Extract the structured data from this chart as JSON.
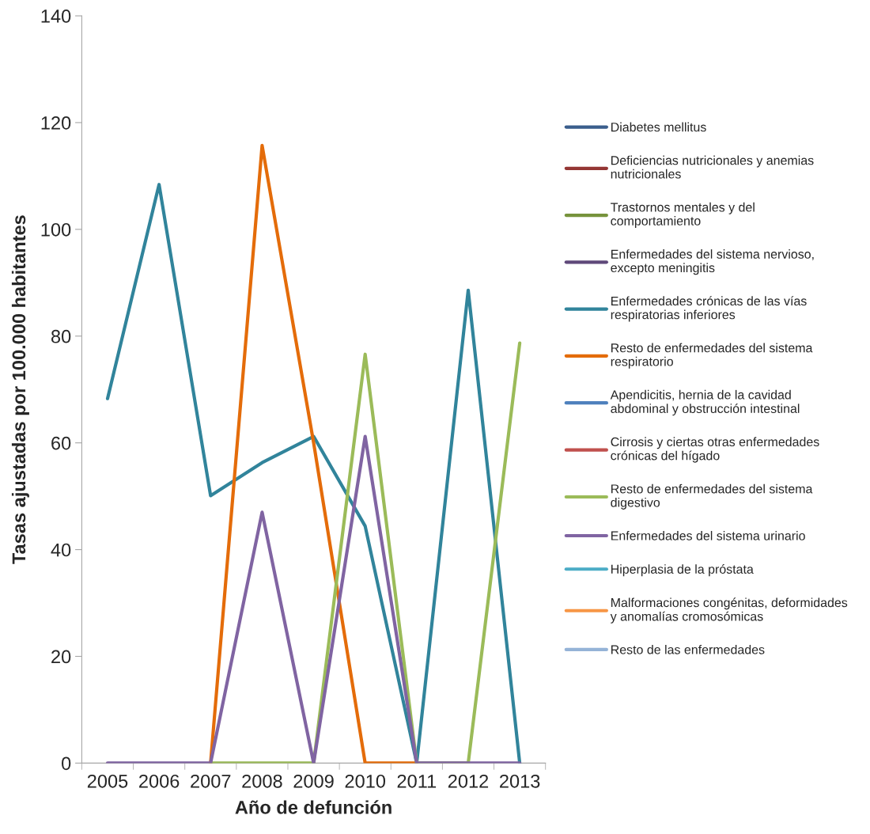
{
  "chart_data": {
    "type": "line",
    "xlabel": "Año de defunción",
    "ylabel": "Tasas ajustadas por 100.000 habitantes",
    "categories": [
      "2005",
      "2006",
      "2007",
      "2008",
      "2009",
      "2010",
      "2011",
      "2012",
      "2013"
    ],
    "ylim": [
      0,
      140
    ],
    "yticks": [
      0,
      20,
      40,
      60,
      80,
      100,
      120,
      140
    ],
    "grid": false,
    "legend": "right",
    "marker": "none",
    "line_style": "solid",
    "series": [
      {
        "name": "Diabetes mellitus",
        "color": "#3a5e8c",
        "values": [
          null,
          null,
          null,
          null,
          null,
          null,
          null,
          null,
          null
        ]
      },
      {
        "name": "Deficiencias nutricionales y anemias\nnutricionales",
        "color": "#943634",
        "values": [
          null,
          null,
          null,
          null,
          null,
          null,
          null,
          null,
          null
        ]
      },
      {
        "name": "Trastornos mentales y del\ncomportamiento",
        "color": "#77933c",
        "values": [
          null,
          null,
          null,
          null,
          null,
          null,
          null,
          null,
          null
        ]
      },
      {
        "name": "Enfermedades del sistema nervioso,\nexcepto meningitis",
        "color": "#5f497a",
        "values": [
          null,
          null,
          null,
          null,
          null,
          null,
          null,
          null,
          null
        ]
      },
      {
        "name": "Enfermedades crónicas de las vías\nrespiratorias inferiores",
        "color": "#31849b",
        "values": [
          68.3,
          108.4,
          50.1,
          56.3,
          61.2,
          44.4,
          0,
          88.6,
          0
        ]
      },
      {
        "name": "Resto de enfermedades del sistema\nrespiratorio",
        "color": "#e46c0a",
        "values": [
          null,
          null,
          0,
          115.7,
          60,
          0,
          0,
          null,
          null
        ]
      },
      {
        "name": "Apendicitis, hernia de la cavidad\nabdominal y obstrucción intestinal",
        "color": "#4f81bd",
        "values": [
          null,
          null,
          null,
          null,
          null,
          null,
          null,
          null,
          null
        ]
      },
      {
        "name": "Cirrosis y ciertas otras enfermedades\ncrónicas del hígado",
        "color": "#c0504d",
        "values": [
          null,
          null,
          null,
          null,
          null,
          null,
          null,
          null,
          null
        ]
      },
      {
        "name": "Resto de enfermedades del sistema\ndigestivo",
        "color": "#9bbb59",
        "values": [
          null,
          null,
          0,
          0,
          0,
          76.6,
          0,
          0,
          78.7
        ]
      },
      {
        "name": "Enfermedades del sistema urinario",
        "color": "#8064a2",
        "values": [
          0,
          0,
          0,
          47,
          0,
          61.2,
          0,
          0,
          0
        ]
      },
      {
        "name": "Hiperplasia de la próstata",
        "color": "#4bacc6",
        "values": [
          null,
          null,
          null,
          null,
          null,
          null,
          null,
          null,
          null
        ]
      },
      {
        "name": "Malformaciones congénitas, deformidades\ny anomalías cromosómicas",
        "color": "#f79646",
        "values": [
          null,
          null,
          null,
          null,
          null,
          null,
          null,
          null,
          null
        ]
      },
      {
        "name": "Resto de las enfermedades",
        "color": "#95b3d7",
        "values": [
          null,
          null,
          null,
          null,
          null,
          null,
          null,
          null,
          null
        ]
      }
    ]
  }
}
